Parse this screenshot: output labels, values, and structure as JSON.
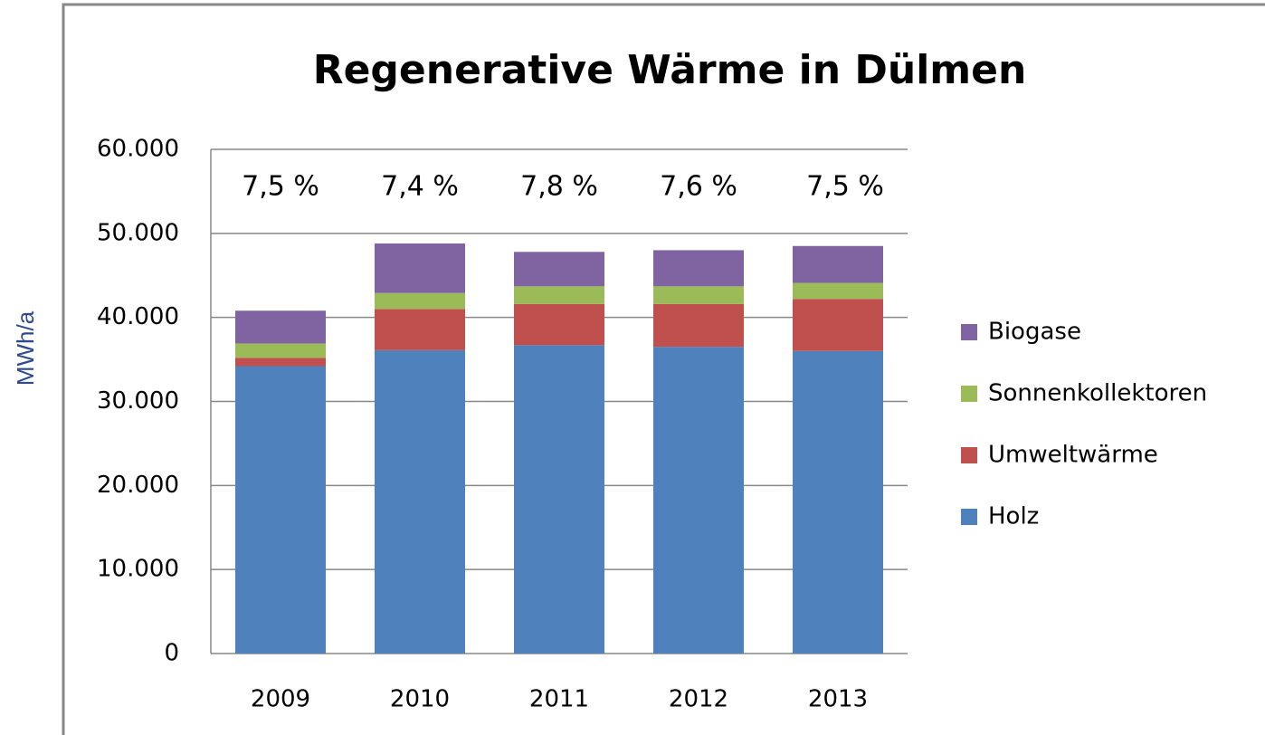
{
  "chart_data": {
    "type": "stacked_bar",
    "title": "Regenerative Wärme in Dülmen",
    "y_label": "MWh/a",
    "categories": [
      "2009",
      "2010",
      "2011",
      "2012",
      "2013"
    ],
    "series": [
      {
        "name": "Holz",
        "color": "#4f81bd",
        "values": [
          34200,
          36100,
          36700,
          36500,
          36000
        ]
      },
      {
        "name": "Umweltwärme",
        "color": "#c0504d",
        "values": [
          1000,
          4900,
          4900,
          5100,
          6200
        ]
      },
      {
        "name": "Sonnenkollektoren",
        "color": "#9bbb59",
        "values": [
          1700,
          1900,
          2100,
          2100,
          1900
        ]
      },
      {
        "name": "Biogase",
        "color": "#8064a2",
        "values": [
          3900,
          5900,
          4100,
          4300,
          4400
        ]
      }
    ],
    "annotations": [
      "7,5 %",
      "7,4 %",
      "7,8 %",
      "7,6 %",
      "7,5 %"
    ],
    "ylim": [
      0,
      60000
    ],
    "yticks": [
      0,
      {
        "value": 10000,
        "label": "10.000"
      },
      {
        "value": 20000,
        "label": "20.000"
      },
      {
        "value": 30000,
        "label": "30.000"
      },
      {
        "value": 40000,
        "label": "40.000"
      },
      {
        "value": 50000,
        "label": "50.000"
      },
      {
        "value": 60000,
        "label": "60.000"
      }
    ],
    "grid": true,
    "legend": "right"
  }
}
